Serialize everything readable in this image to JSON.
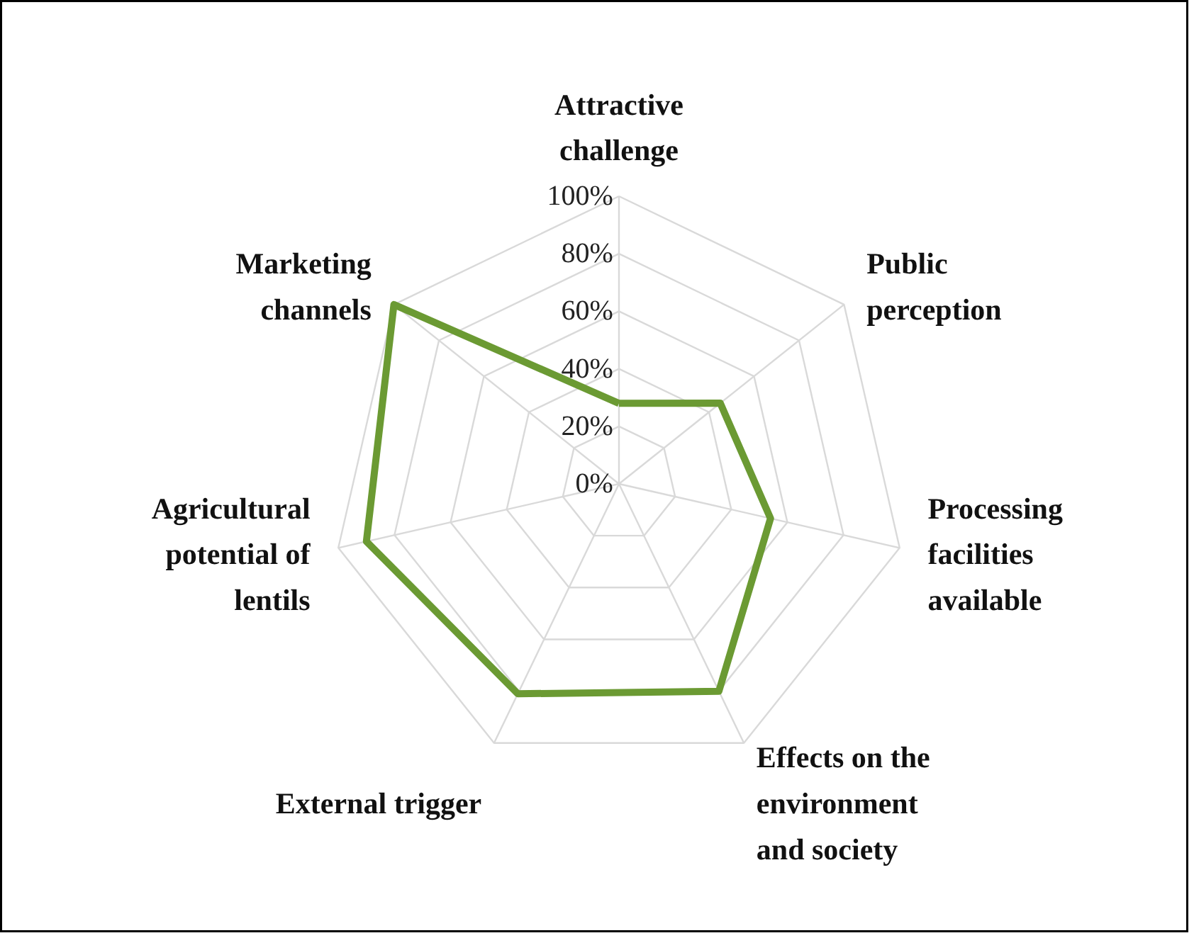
{
  "chart_data": {
    "type": "radar",
    "categories": [
      "Attractive\nchallenge",
      "Public\nperception",
      "Processing\nfacilities\navailable",
      "Effects on the\nenvironment\nand society",
      "External trigger",
      "Agricultural\npotential of\nlentils",
      "Marketing\nchannels"
    ],
    "series": [
      {
        "color": "#6b9a33",
        "values": [
          28,
          45,
          54,
          80,
          81,
          90,
          100
        ]
      }
    ],
    "ylim": [
      0,
      100
    ],
    "yticks": [
      {
        "value": 0,
        "label": "0%"
      },
      {
        "value": 20,
        "label": "20%"
      },
      {
        "value": 40,
        "label": "40%"
      },
      {
        "value": 60,
        "label": "60%"
      },
      {
        "value": 80,
        "label": "80%"
      },
      {
        "value": 100,
        "label": "100%"
      }
    ],
    "grid": true
  }
}
